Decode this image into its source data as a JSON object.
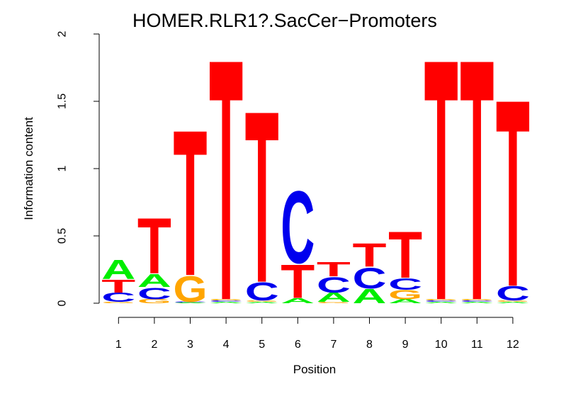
{
  "chart_data": {
    "type": "sequence-logo",
    "title": "HOMER.RLR1?.SacCer−Promoters",
    "xlabel": "Position",
    "ylabel": "Information content",
    "ylim": [
      0,
      2
    ],
    "yticks": [
      "0",
      "0.5",
      "1",
      "1.5",
      "2"
    ],
    "positions": [
      "1",
      "2",
      "3",
      "4",
      "5",
      "6",
      "7",
      "8",
      "9",
      "10",
      "11",
      "12"
    ],
    "colors": {
      "A": "#00ee00",
      "C": "#0000ee",
      "G": "#ffa500",
      "T": "#ff0000"
    },
    "stacks": [
      [
        {
          "letter": "G",
          "height": 0.01
        },
        {
          "letter": "C",
          "height": 0.07
        },
        {
          "letter": "T",
          "height": 0.1
        },
        {
          "letter": "A",
          "height": 0.15
        }
      ],
      [
        {
          "letter": "G",
          "height": 0.03
        },
        {
          "letter": "C",
          "height": 0.09
        },
        {
          "letter": "A",
          "height": 0.1
        },
        {
          "letter": "T",
          "height": 0.43
        }
      ],
      [
        {
          "letter": "A",
          "height": 0.005
        },
        {
          "letter": "C",
          "height": 0.005
        },
        {
          "letter": "G",
          "height": 0.2
        },
        {
          "letter": "T",
          "height": 1.13
        }
      ],
      [
        {
          "letter": "A",
          "height": 0.01
        },
        {
          "letter": "C",
          "height": 0.01
        },
        {
          "letter": "G",
          "height": 0.01
        },
        {
          "letter": "T",
          "height": 1.87
        }
      ],
      [
        {
          "letter": "A",
          "height": 0.01
        },
        {
          "letter": "G",
          "height": 0.01
        },
        {
          "letter": "C",
          "height": 0.14
        },
        {
          "letter": "T",
          "height": 1.33
        }
      ],
      [
        {
          "letter": "A",
          "height": 0.04
        },
        {
          "letter": "T",
          "height": 0.26
        },
        {
          "letter": "C",
          "height": 0.56
        }
      ],
      [
        {
          "letter": "G",
          "height": 0.01
        },
        {
          "letter": "A",
          "height": 0.07
        },
        {
          "letter": "C",
          "height": 0.12
        },
        {
          "letter": "T",
          "height": 0.11
        }
      ],
      [
        {
          "letter": "A",
          "height": 0.11
        },
        {
          "letter": "C",
          "height": 0.16
        },
        {
          "letter": "T",
          "height": 0.18
        }
      ],
      [
        {
          "letter": "A",
          "height": 0.03
        },
        {
          "letter": "G",
          "height": 0.07
        },
        {
          "letter": "C",
          "height": 0.09
        },
        {
          "letter": "T",
          "height": 0.36
        }
      ],
      [
        {
          "letter": "A",
          "height": 0.01
        },
        {
          "letter": "C",
          "height": 0.01
        },
        {
          "letter": "G",
          "height": 0.01
        },
        {
          "letter": "T",
          "height": 1.87
        }
      ],
      [
        {
          "letter": "A",
          "height": 0.01
        },
        {
          "letter": "C",
          "height": 0.01
        },
        {
          "letter": "G",
          "height": 0.01
        },
        {
          "letter": "T",
          "height": 1.87
        }
      ],
      [
        {
          "letter": "A",
          "height": 0.01
        },
        {
          "letter": "G",
          "height": 0.01
        },
        {
          "letter": "C",
          "height": 0.11
        },
        {
          "letter": "T",
          "height": 1.45
        }
      ]
    ]
  }
}
